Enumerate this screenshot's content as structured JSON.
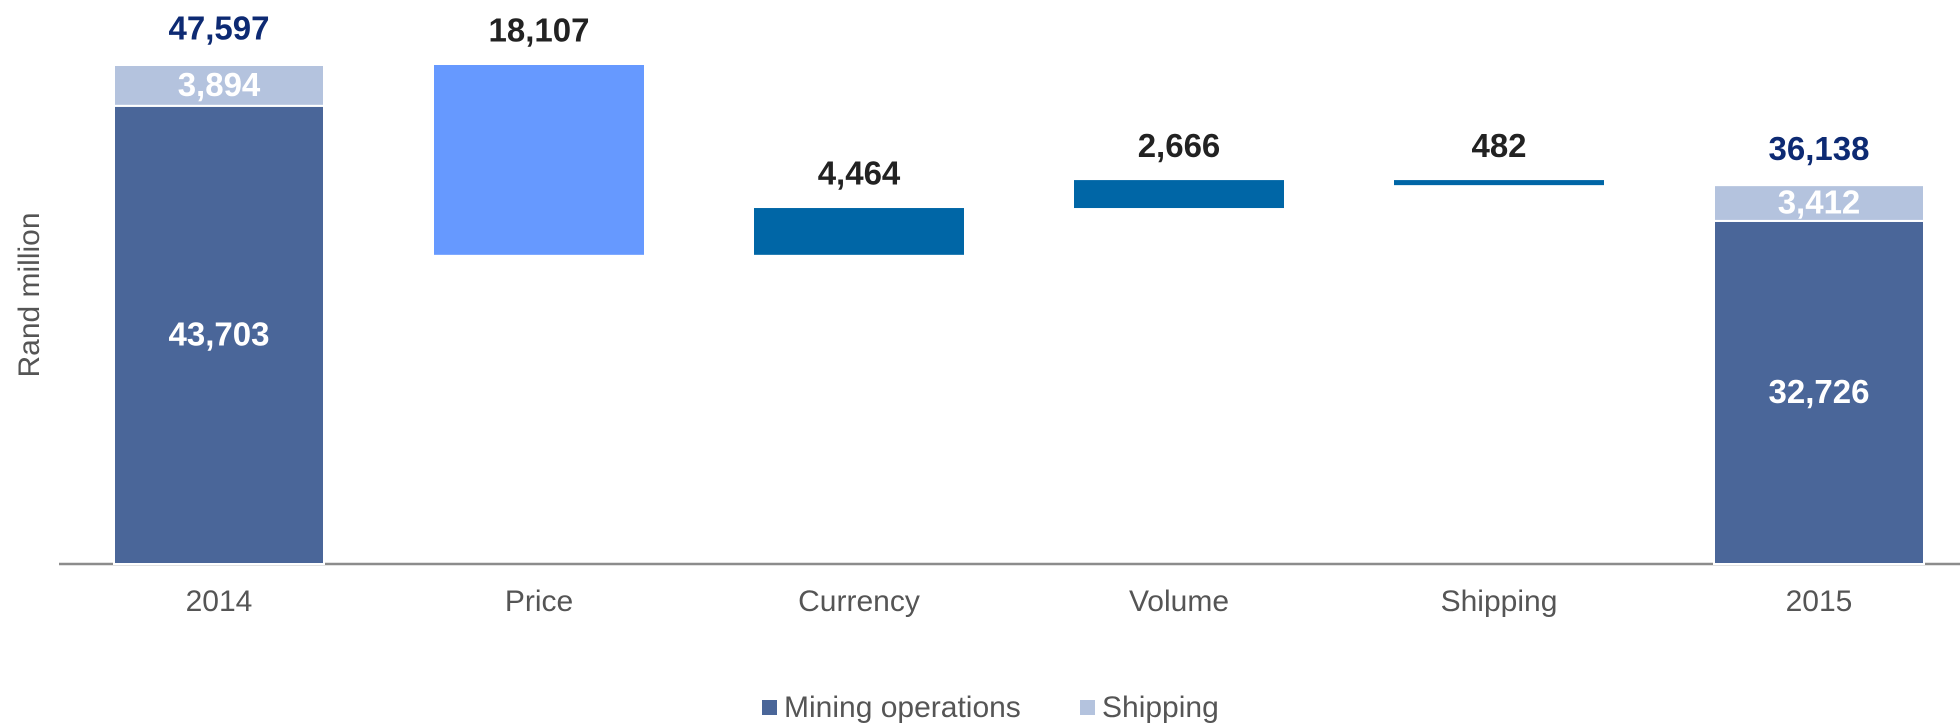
{
  "chart_data": {
    "type": "waterfall",
    "y_label": "Rand  million",
    "categories": [
      "2014",
      "Price",
      "Currency",
      "Volume",
      "Shipping",
      "2015"
    ],
    "series": [
      {
        "name": "Mining operations",
        "color": "#4a6699",
        "values": [
          43703,
          null,
          null,
          null,
          null,
          32726
        ],
        "value_labels": [
          "43,703",
          null,
          null,
          null,
          null,
          "32,726"
        ]
      },
      {
        "name": "Shipping",
        "color": "#b4c3de",
        "values": [
          3894,
          null,
          null,
          null,
          null,
          3412
        ],
        "value_labels": [
          "3,894",
          null,
          null,
          null,
          null,
          "3,412"
        ]
      }
    ],
    "totals": {
      "values": [
        47597,
        null,
        null,
        null,
        null,
        36138
      ],
      "value_labels": [
        "47,597",
        null,
        null,
        null,
        null,
        "36,138"
      ],
      "color": "#0d2a73"
    },
    "changes": {
      "values": [
        null,
        -18107,
        4464,
        2666,
        -482,
        null
      ],
      "value_labels": [
        null,
        "18,107",
        "4,464",
        "2,666",
        "482",
        null
      ],
      "colors": [
        null,
        "#6699ff",
        "#0066a6",
        "#0066a6",
        "#0066a6",
        null
      ]
    }
  }
}
